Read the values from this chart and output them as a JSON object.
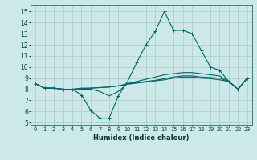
{
  "title": "",
  "xlabel": "Humidex (Indice chaleur)",
  "background_color": "#cce8e8",
  "grid_color": "#aacaca",
  "line_color": "#006666",
  "xlim": [
    -0.5,
    23.5
  ],
  "ylim": [
    4.8,
    15.6
  ],
  "yticks": [
    5,
    6,
    7,
    8,
    9,
    10,
    11,
    12,
    13,
    14,
    15
  ],
  "xticks": [
    0,
    1,
    2,
    3,
    4,
    5,
    6,
    7,
    8,
    9,
    10,
    11,
    12,
    13,
    14,
    15,
    16,
    17,
    18,
    19,
    20,
    21,
    22,
    23
  ],
  "line_main": [
    8.5,
    8.1,
    8.1,
    8.0,
    8.0,
    7.5,
    6.1,
    5.4,
    5.4,
    7.4,
    8.7,
    10.4,
    12.0,
    13.2,
    15.0,
    13.3,
    13.3,
    13.0,
    11.5,
    10.0,
    9.7,
    8.7,
    8.0,
    9.0
  ],
  "line2": [
    8.5,
    8.1,
    8.1,
    8.0,
    8.0,
    8.0,
    8.0,
    7.8,
    7.4,
    7.8,
    8.5,
    8.7,
    8.9,
    9.1,
    9.3,
    9.4,
    9.5,
    9.5,
    9.4,
    9.3,
    9.2,
    8.7,
    8.0,
    9.0
  ],
  "line3": [
    8.5,
    8.1,
    8.1,
    8.0,
    8.0,
    8.1,
    8.1,
    8.15,
    8.2,
    8.3,
    8.5,
    8.6,
    8.7,
    8.8,
    8.95,
    9.1,
    9.2,
    9.2,
    9.1,
    9.05,
    9.0,
    8.7,
    8.0,
    9.0
  ],
  "line4": [
    8.5,
    8.1,
    8.1,
    8.0,
    8.0,
    8.05,
    8.1,
    8.15,
    8.2,
    8.3,
    8.45,
    8.55,
    8.65,
    8.75,
    8.85,
    9.0,
    9.1,
    9.1,
    9.0,
    8.95,
    8.85,
    8.7,
    8.0,
    9.0
  ]
}
